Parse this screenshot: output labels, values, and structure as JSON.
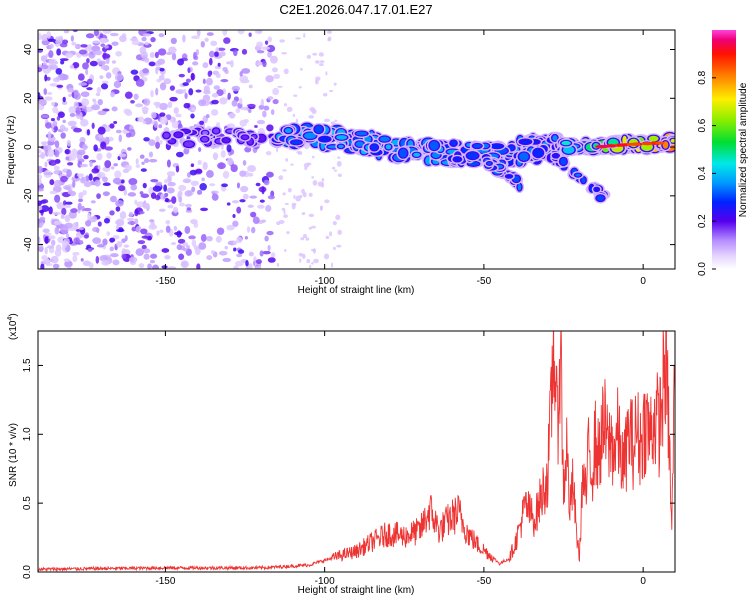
{
  "figure_title": "C2E1.2026.047.17.01.E27",
  "colors": {
    "snr_line": "#ee3333",
    "frame": "#000000",
    "background": "#ffffff"
  },
  "chart_data": [
    {
      "type": "heatmap",
      "name": "spectrogram",
      "xlabel": "Height of straight line (km)",
      "ylabel": "Frequency (Hz)",
      "xlim": [
        -190,
        10
      ],
      "ylim": [
        -50,
        48
      ],
      "xticks": [
        -150,
        -100,
        -50,
        0
      ],
      "yticks": [
        -40,
        -20,
        0,
        20,
        40
      ],
      "colorbar": {
        "label": "Normalized spectral amplitude",
        "range": [
          0,
          1
        ],
        "ticks": [
          0.0,
          0.2,
          0.4,
          0.6,
          0.8
        ],
        "tick_labels": [
          "0.0",
          "0.2",
          "0.4",
          "0.6",
          "0.8"
        ]
      },
      "noise_region_x": [
        -190,
        -115
      ],
      "ridge": [
        {
          "x": -115,
          "y": 4
        },
        {
          "x": -100,
          "y": 4
        },
        {
          "x": -85,
          "y": 1
        },
        {
          "x": -70,
          "y": -2
        },
        {
          "x": -55,
          "y": -3
        },
        {
          "x": -45,
          "y": -3
        },
        {
          "x": -35,
          "y": -1
        },
        {
          "x": -25,
          "y": 0
        },
        {
          "x": -15,
          "y": 0
        },
        {
          "x": -5,
          "y": 1
        },
        {
          "x": 10,
          "y": 2
        }
      ],
      "branches": [
        [
          {
            "x": -50,
            "y": -5
          },
          {
            "x": -38,
            "y": -16
          }
        ],
        [
          {
            "x": -30,
            "y": -2
          },
          {
            "x": -12,
            "y": -21
          }
        ]
      ]
    },
    {
      "type": "line",
      "name": "snr",
      "xlabel": "Height of straight line (km)",
      "ylabel": "SNR (10 * v/v)",
      "exponent_label": "(x10",
      "exponent_power": "4",
      "exponent_close": ")",
      "xlim": [
        -190,
        10
      ],
      "ylim": [
        0,
        1.75
      ],
      "xticks": [
        -150,
        -100,
        -50,
        0
      ],
      "yticks": [
        0.0,
        0.5,
        1.0,
        1.5
      ],
      "ytick_labels": [
        "0.0",
        "0.5",
        "1.0",
        "1.5"
      ],
      "series": [
        {
          "name": "SNR",
          "x": [
            -190,
            -150,
            -120,
            -105,
            -95,
            -90,
            -85,
            -80,
            -75,
            -70,
            -67,
            -64,
            -61,
            -58,
            -55,
            -52,
            -48,
            -45,
            -42,
            -40,
            -37,
            -34,
            -32,
            -30,
            -29,
            -28,
            -27,
            -26,
            -25,
            -24,
            -23,
            -22,
            -21,
            -20,
            -19,
            -18,
            -17,
            -16,
            -15,
            -14,
            -13,
            -12,
            -11,
            -10,
            -9,
            -8,
            -7,
            -6,
            -5,
            -4,
            -3,
            -2,
            -1,
            0,
            1,
            2,
            3,
            4,
            5,
            6,
            7,
            8,
            9,
            10
          ],
          "values": [
            0.02,
            0.03,
            0.03,
            0.05,
            0.12,
            0.15,
            0.22,
            0.28,
            0.26,
            0.3,
            0.45,
            0.3,
            0.38,
            0.43,
            0.28,
            0.2,
            0.12,
            0.06,
            0.1,
            0.22,
            0.48,
            0.38,
            0.55,
            0.7,
            1.1,
            1.75,
            1.0,
            1.7,
            0.6,
            0.9,
            0.45,
            0.65,
            0.3,
            0.1,
            0.7,
            0.55,
            0.9,
            0.75,
            0.95,
            0.82,
            1.0,
            1.05,
            0.9,
            0.95,
            0.88,
            1.0,
            0.85,
            0.75,
            0.95,
            1.0,
            0.9,
            1.05,
            0.92,
            1.02,
            1.1,
            0.98,
            1.08,
            1.12,
            1.05,
            1.25,
            1.55,
            1.1,
            0.3,
            1.6
          ]
        }
      ]
    }
  ]
}
